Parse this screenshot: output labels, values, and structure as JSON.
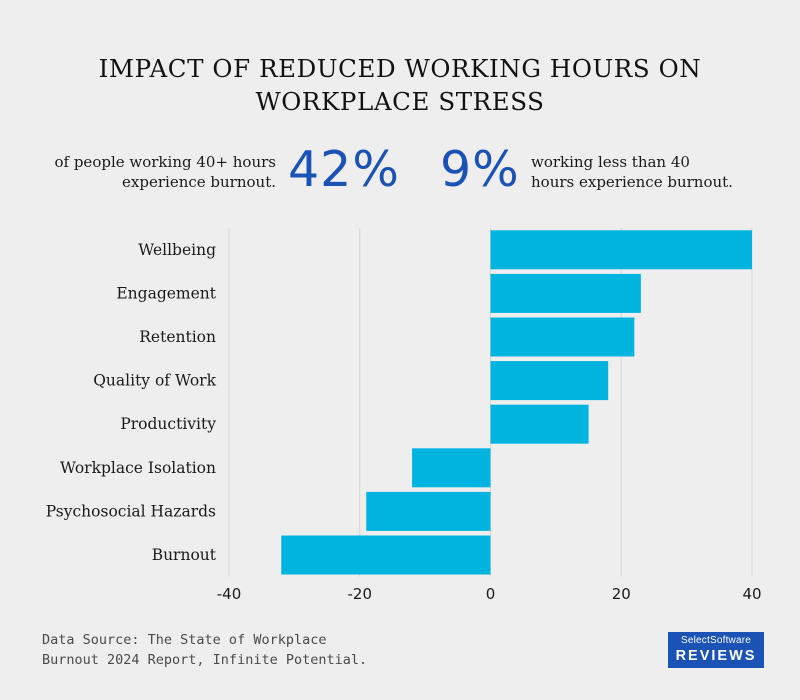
{
  "title": {
    "line1": "IMPACT OF REDUCED WORKING HOURS ON",
    "line2": "WORKPLACE STRESS"
  },
  "stats": {
    "left": {
      "text_line1": "of people working 40+ hours",
      "text_line2": "experience burnout.",
      "value": "42%"
    },
    "right": {
      "value": "9%",
      "text_line1": "working less than 40",
      "text_line2": "hours experience burnout."
    }
  },
  "source": {
    "line1": "Data Source: The State of Workplace",
    "line2": "Burnout 2024 Report, Infinite Potential."
  },
  "logo": {
    "line1": "SelectSoftware",
    "line2": "REVIEWS"
  },
  "colors": {
    "background": "#efeeee",
    "bar": "#00b4e0",
    "accent": "#1a52b5",
    "gridline": "#d6d6d6"
  },
  "chart_data": {
    "type": "bar",
    "orientation": "horizontal",
    "categories": [
      "Wellbeing",
      "Engagement",
      "Retention",
      "Quality of Work",
      "Productivity",
      "Workplace Isolation",
      "Psychosocial Hazards",
      "Burnout"
    ],
    "values": [
      40,
      23,
      22,
      18,
      15,
      -12,
      -19,
      -32
    ],
    "xlim": [
      -40,
      40
    ],
    "xticks": [
      -40,
      -20,
      0,
      20,
      40
    ],
    "grid": true,
    "title": "",
    "xlabel": "",
    "ylabel": ""
  }
}
